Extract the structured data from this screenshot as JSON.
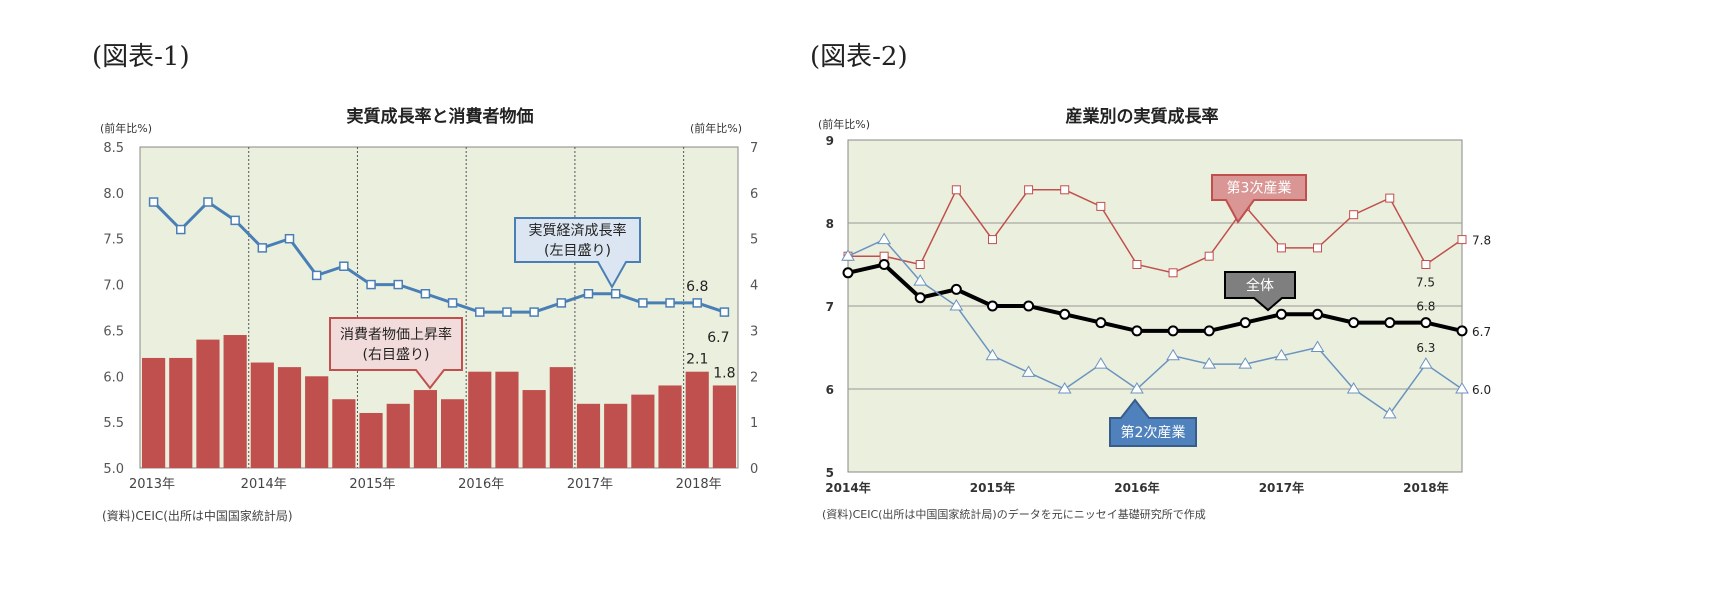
{
  "figure_labels": [
    "(図表-1)",
    "(図表-2)"
  ],
  "chart_data": [
    {
      "type": "bar+line",
      "title": "実質成長率と消費者物価",
      "ylabel_left": "(前年比%)",
      "ylabel_right": "(前年比%)",
      "ylim_left": [
        5.0,
        8.5
      ],
      "yticks_left": [
        "5.0",
        "5.5",
        "6.0",
        "6.5",
        "7.0",
        "7.5",
        "8.0",
        "8.5"
      ],
      "ylim_right": [
        0,
        7
      ],
      "yticks_right": [
        "0",
        "1",
        "2",
        "3",
        "4",
        "5",
        "6",
        "7"
      ],
      "xtick_labels": [
        "2013年",
        "2014年",
        "2015年",
        "2016年",
        "2017年",
        "2018年"
      ],
      "x": [
        "2013Q1",
        "2013Q2",
        "2013Q3",
        "2013Q4",
        "2014Q1",
        "2014Q2",
        "2014Q3",
        "2014Q4",
        "2015Q1",
        "2015Q2",
        "2015Q3",
        "2015Q4",
        "2016Q1",
        "2016Q2",
        "2016Q3",
        "2016Q4",
        "2017Q1",
        "2017Q2",
        "2017Q3",
        "2017Q4",
        "2018Q1",
        "2018Q2"
      ],
      "series": [
        {
          "name": "実質経済成長率(左目盛り)",
          "label_line1": "実質経済成長率",
          "label_line2": "(左目盛り)",
          "type": "line",
          "axis": "left",
          "color": "#4a7fb5",
          "values": [
            7.9,
            7.6,
            7.9,
            7.7,
            7.4,
            7.5,
            7.1,
            7.2,
            7.0,
            7.0,
            6.9,
            6.8,
            6.7,
            6.7,
            6.7,
            6.8,
            6.9,
            6.9,
            6.8,
            6.8,
            6.8,
            6.7
          ]
        },
        {
          "name": "消費者物価上昇率(右目盛り)",
          "label_line1": "消費者物価上昇率",
          "label_line2": "(右目盛り)",
          "type": "bar",
          "axis": "right",
          "color": "#c0504d",
          "values": [
            2.4,
            2.4,
            2.8,
            2.9,
            2.3,
            2.2,
            2.0,
            1.5,
            1.2,
            1.4,
            1.7,
            1.5,
            2.1,
            2.1,
            1.7,
            2.2,
            1.4,
            1.4,
            1.6,
            1.8,
            2.1,
            1.8
          ]
        }
      ],
      "data_labels": [
        "6.8",
        "6.7",
        "2.1",
        "1.8"
      ],
      "source": "(資料)CEIC(出所は中国国家統計局)",
      "background": "#ebf0de"
    },
    {
      "type": "line",
      "title": "産業別の実質成長率",
      "ylabel": "(前年比%)",
      "ylim": [
        5,
        9
      ],
      "yticks": [
        "5",
        "6",
        "7",
        "8",
        "9"
      ],
      "xtick_labels": [
        "2014年",
        "2015年",
        "2016年",
        "2017年",
        "2018年"
      ],
      "x": [
        "2014Q1",
        "2014Q2",
        "2014Q3",
        "2014Q4",
        "2015Q1",
        "2015Q2",
        "2015Q3",
        "2015Q4",
        "2016Q1",
        "2016Q2",
        "2016Q3",
        "2016Q4",
        "2017Q1",
        "2017Q2",
        "2017Q3",
        "2017Q4",
        "2018Q1",
        "2018Q2"
      ],
      "series": [
        {
          "name": "第3次産業",
          "color": "#c0504d",
          "marker": "square",
          "values": [
            7.6,
            7.6,
            7.5,
            8.4,
            7.8,
            8.4,
            8.4,
            8.2,
            7.5,
            7.4,
            7.6,
            8.2,
            7.7,
            7.7,
            8.1,
            8.3,
            7.5,
            7.8
          ]
        },
        {
          "name": "全体",
          "color": "#000000",
          "marker": "circle",
          "values": [
            7.4,
            7.5,
            7.1,
            7.2,
            7.0,
            7.0,
            6.9,
            6.8,
            6.7,
            6.7,
            6.7,
            6.8,
            6.9,
            6.9,
            6.8,
            6.8,
            6.8,
            6.7
          ]
        },
        {
          "name": "第2次産業",
          "color": "#6b93c0",
          "marker": "triangle",
          "values": [
            7.6,
            7.8,
            7.3,
            7.0,
            6.4,
            6.2,
            6.0,
            6.3,
            6.0,
            6.4,
            6.3,
            6.3,
            6.4,
            6.5,
            6.0,
            5.7,
            6.3,
            6.0
          ]
        }
      ],
      "data_labels": [
        "7.8",
        "7.5",
        "6.8",
        "6.7",
        "6.3",
        "6.0"
      ],
      "source": "(資料)CEIC(出所は中国国家統計局)のデータを元にニッセイ基礎研究所で作成",
      "background": "#ebf0de"
    }
  ]
}
